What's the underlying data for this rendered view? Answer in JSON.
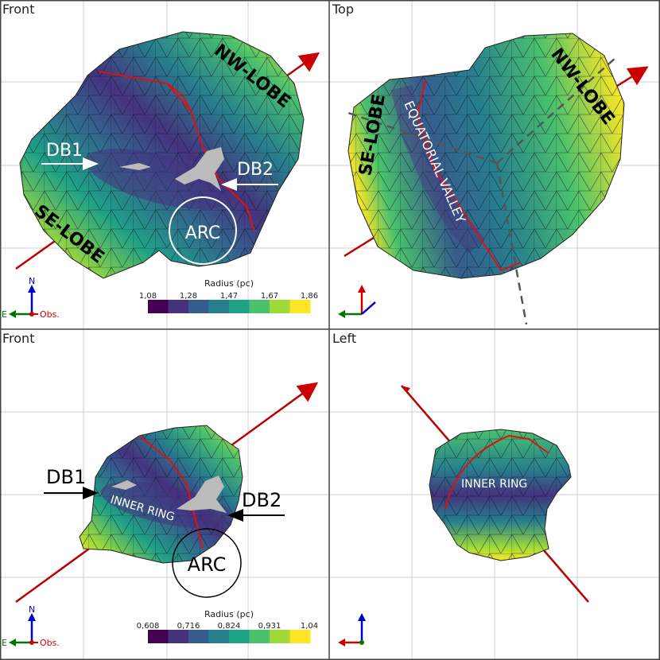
{
  "panels": [
    {
      "title": "Front"
    },
    {
      "title": "Top"
    },
    {
      "title": "Front"
    },
    {
      "title": "Left"
    }
  ],
  "labels": {
    "p1": {
      "nw": "NW-LOBE",
      "se": "SE-LOBE",
      "db1": "DB1",
      "db2": "DB2",
      "arc": "ARC"
    },
    "p2": {
      "nw": "NW-LOBE",
      "se": "SE-LOBE",
      "eq": "EQUATORIAL VALLEY"
    },
    "p3": {
      "db1": "DB1",
      "db2": "DB2",
      "ring": "INNER RING",
      "arc": "ARC"
    },
    "p4": {
      "ring": "INNER RING"
    }
  },
  "axes": {
    "north": "N",
    "east": "E",
    "observer": "Obs."
  },
  "colorbars": [
    {
      "title": "Radius (pc)",
      "ticks": [
        "1,08",
        "1,28",
        "1,47",
        "1,67",
        "1,86"
      ]
    },
    {
      "title": "Radius (pc)",
      "ticks": [
        "0,608",
        "0,716",
        "0,824",
        "0,931",
        "1,04"
      ]
    }
  ],
  "colormap": [
    "#440154",
    "#46327e",
    "#365c8d",
    "#277f8e",
    "#1fa187",
    "#4ac16d",
    "#a0da39",
    "#fde725"
  ],
  "colors": {
    "axis_red": "#cc0000",
    "north_blue": "#0000cc",
    "east_green": "#007700",
    "valley_line": "#e01010",
    "dash_gray": "#555555"
  }
}
